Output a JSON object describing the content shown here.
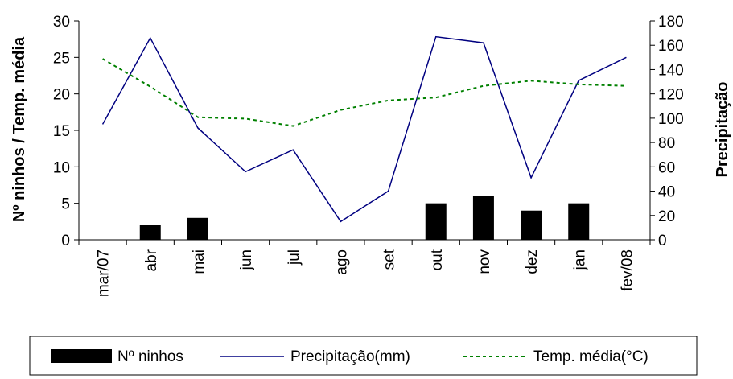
{
  "chart_data": {
    "type": "bar+line",
    "categories": [
      "mar/07",
      "abr",
      "mai",
      "jun",
      "jul",
      "ago",
      "set",
      "out",
      "nov",
      "dez",
      "jan",
      "fev/08"
    ],
    "left_axis": {
      "label": "Nº ninhos / Temp. média",
      "range": [
        0,
        30
      ],
      "ticks": [
        "0",
        "5",
        "10",
        "15",
        "20",
        "25",
        "30"
      ]
    },
    "right_axis": {
      "label": "Precipitação",
      "range": [
        0,
        180
      ],
      "ticks": [
        "0",
        "20",
        "40",
        "60",
        "80",
        "100",
        "120",
        "140",
        "160",
        "180"
      ]
    },
    "series": [
      {
        "name": "Nº ninhos",
        "kind": "bar",
        "axis": "left",
        "color": "#000000",
        "values": [
          0,
          2,
          3,
          0,
          0,
          0,
          0,
          5,
          6,
          4,
          5,
          0
        ]
      },
      {
        "name": "Precipitação(mm)",
        "kind": "line",
        "axis": "right",
        "color": "#000080",
        "values": [
          95,
          166,
          92,
          56,
          74,
          15,
          40,
          167,
          162,
          51,
          131,
          150
        ]
      },
      {
        "name": "Temp. média(°C)",
        "kind": "line",
        "dashed": true,
        "axis": "left",
        "color": "#008000",
        "values": [
          24.8,
          21.0,
          16.8,
          16.6,
          15.6,
          17.8,
          19.1,
          19.5,
          21.1,
          21.8,
          21.3,
          21.1
        ]
      }
    ],
    "legend": {
      "position": "bottom",
      "items": [
        "Nº ninhos",
        "Precipitação(mm)",
        "Temp. média(°C)"
      ]
    },
    "grid": false
  }
}
